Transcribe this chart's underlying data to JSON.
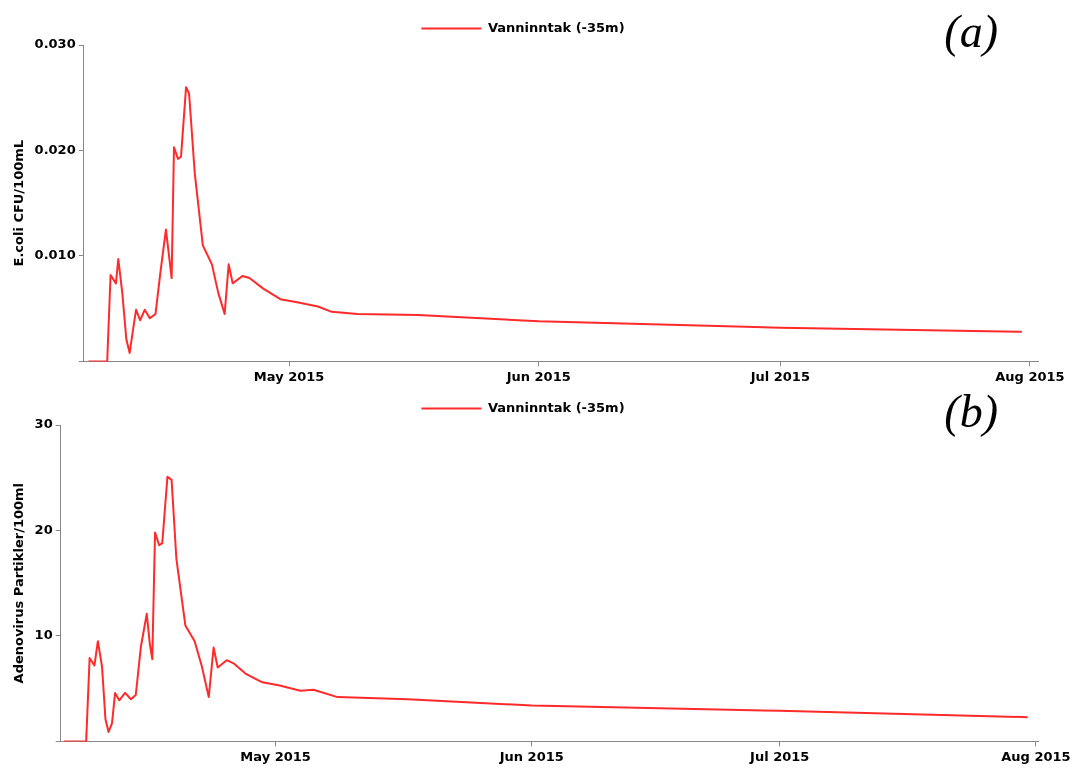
{
  "chart_data": [
    {
      "type": "line",
      "ylabel": "E.coli CFU/100mL",
      "annotations": [
        "(a)"
      ],
      "legend": "top",
      "marker": "none",
      "line_style": "solid",
      "xlim": [
        "2015-04-05T12:00",
        "2015-08-02"
      ],
      "xticks": [
        {
          "value": "2015-05-01",
          "label": "May 2015"
        },
        {
          "value": "2015-06-01",
          "label": "Jun 2015"
        },
        {
          "value": "2015-07-01",
          "label": "Jul 2015"
        },
        {
          "value": "2015-08-01",
          "label": "Aug 2015"
        }
      ],
      "ylim": [
        0,
        0.03
      ],
      "yticks": [
        {
          "value": 0,
          "label": null
        },
        {
          "value": 0.01,
          "label": "0.010"
        },
        {
          "value": 0.02,
          "label": "0.020"
        },
        {
          "value": 0.03,
          "label": "0.030"
        }
      ],
      "series": [
        {
          "name": "Vanninntak (-35m)",
          "color": "#ff2a2a",
          "x": [
            "2015-04-06T02:00",
            "2015-04-08T10:00",
            "2015-04-08T20:00",
            "2015-04-09T12:00",
            "2015-04-09T19:00",
            "2015-04-10T07:00",
            "2015-04-10T19:00",
            "2015-04-11T05:00",
            "2015-04-11T14:00",
            "2015-04-12T00:00",
            "2015-04-12T12:00",
            "2015-04-13T02:00",
            "2015-04-13T17:00",
            "2015-04-14T10:00",
            "2015-04-15T00:00",
            "2015-04-15T17:00",
            "2015-04-16T02:00",
            "2015-04-16T10:00",
            "2015-04-16T17:00",
            "2015-04-17T05:00",
            "2015-04-17T14:00",
            "2015-04-18T05:00",
            "2015-04-18T14:00",
            "2015-04-19T07:00",
            "2015-04-20T07:00",
            "2015-04-21T10:00",
            "2015-04-22T05:00",
            "2015-04-23T00:00",
            "2015-04-23T12:00",
            "2015-04-24T00:00",
            "2015-04-25T05:00",
            "2015-04-26T02:00",
            "2015-04-27T19:00",
            "2015-04-29T22:00",
            "2015-05-02T00:00",
            "2015-05-04T14:00",
            "2015-05-06T07:00",
            "2015-05-09T12:00",
            "2015-05-17",
            "2015-06-01",
            "2015-07-01",
            "2015-07-31"
          ],
          "values": [
            0,
            0,
            0.0082,
            0.0074,
            0.0097,
            0.0065,
            0.0021,
            0.0008,
            0.0028,
            0.0049,
            0.0039,
            0.0049,
            0.0041,
            0.0045,
            0.0083,
            0.0125,
            0.0101,
            0.0079,
            0.0203,
            0.0192,
            0.0194,
            0.026,
            0.0254,
            0.0178,
            0.011,
            0.0092,
            0.0065,
            0.0045,
            0.0092,
            0.0074,
            0.0081,
            0.0079,
            0.0069,
            0.0059,
            0.0056,
            0.0052,
            0.0047,
            0.0045,
            0.0044,
            0.0038,
            0.0032,
            0.0028
          ]
        }
      ]
    },
    {
      "type": "line",
      "ylabel": "Adenovirus Partikler/100ml",
      "annotations": [
        "(b)"
      ],
      "legend": "top",
      "marker": "none",
      "line_style": "solid",
      "xlim": [
        "2015-04-05",
        "2015-08-01T06:00"
      ],
      "xticks": [
        {
          "value": "2015-05-01",
          "label": "May 2015"
        },
        {
          "value": "2015-06-01",
          "label": "Jun 2015"
        },
        {
          "value": "2015-07-01",
          "label": "Jul 2015"
        },
        {
          "value": "2015-08-01",
          "label": "Aug 2015"
        }
      ],
      "ylim": [
        0,
        30
      ],
      "yticks": [
        {
          "value": 0,
          "label": null
        },
        10,
        20,
        30
      ],
      "series": [
        {
          "name": "Vanninntak (-35m)",
          "color": "#ff2a2a",
          "x": [
            "2015-04-05T10:00",
            "2015-04-08T02:00",
            "2015-04-08T12:00",
            "2015-04-09T02:00",
            "2015-04-09T12:00",
            "2015-04-10T00:00",
            "2015-04-10T10:00",
            "2015-04-10T19:00",
            "2015-04-11T05:00",
            "2015-04-11T14:00",
            "2015-04-12T02:00",
            "2015-04-12T19:00",
            "2015-04-13T12:00",
            "2015-04-14T02:00",
            "2015-04-14T17:00",
            "2015-04-15T10:00",
            "2015-04-15T19:00",
            "2015-04-16T02:00",
            "2015-04-16T10:00",
            "2015-04-16T22:00",
            "2015-04-17T07:00",
            "2015-04-17T22:00",
            "2015-04-18T10:00",
            "2015-04-19T00:00",
            "2015-04-20T02:00",
            "2015-04-21T05:00",
            "2015-04-22T02:00",
            "2015-04-22T22:00",
            "2015-04-23T12:00",
            "2015-04-24T00:00",
            "2015-04-25T02:00",
            "2015-04-25T22:00",
            "2015-04-27T10:00",
            "2015-04-29T10:00",
            "2015-05-01T12:00",
            "2015-05-04T00:00",
            "2015-05-05T14:00",
            "2015-05-08T12:00",
            "2015-05-17",
            "2015-06-01",
            "2015-07-01",
            "2015-07-31"
          ],
          "values": [
            0,
            0,
            7.9,
            7.2,
            9.5,
            7.1,
            2.1,
            0.9,
            1.7,
            4.6,
            3.9,
            4.6,
            4.0,
            4.4,
            9.0,
            12.1,
            9.2,
            7.8,
            19.8,
            18.6,
            18.8,
            25.1,
            24.8,
            17.3,
            11.0,
            9.5,
            7.1,
            4.2,
            8.9,
            7.0,
            7.7,
            7.4,
            6.4,
            5.6,
            5.3,
            4.8,
            4.9,
            4.2,
            4.0,
            3.4,
            2.9,
            2.3
          ]
        }
      ]
    }
  ]
}
